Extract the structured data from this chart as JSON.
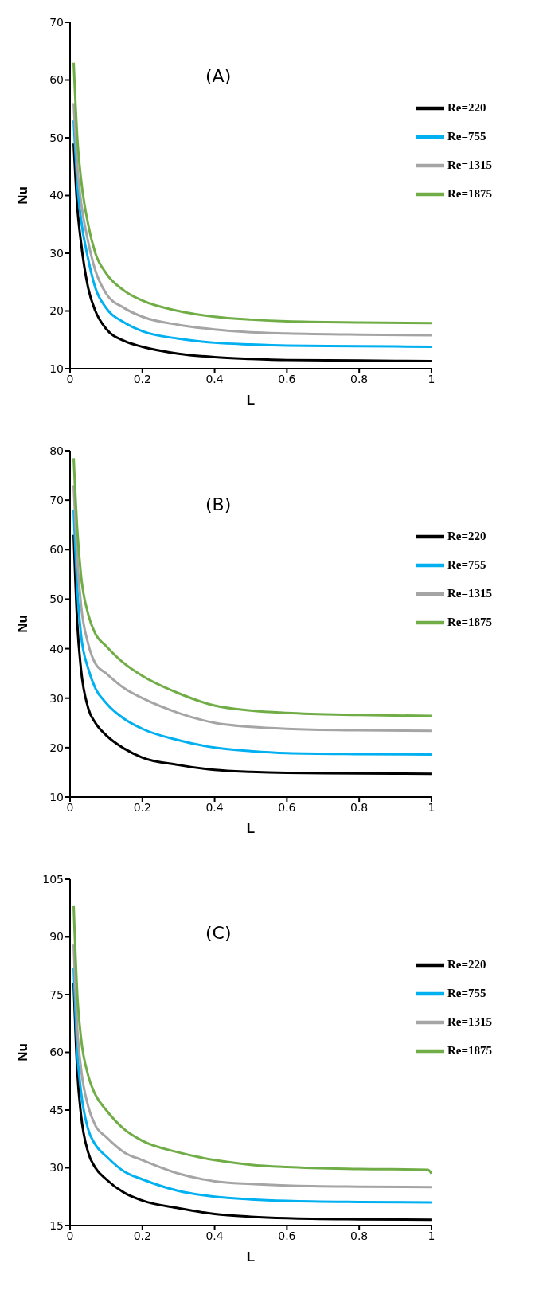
{
  "chart_data": [
    {
      "type": "line",
      "annotations": [
        "(A)"
      ],
      "xlabel": "L",
      "ylabel": "Nu",
      "x": [
        0.01,
        0.02,
        0.03,
        0.05,
        0.07,
        0.1,
        0.15,
        0.2,
        0.3,
        0.4,
        0.5,
        0.6,
        0.8,
        1.0
      ],
      "xlim": [
        0,
        1
      ],
      "xticks": [
        0,
        0.2,
        0.4,
        0.6,
        0.8,
        1
      ],
      "ylim": [
        10,
        70
      ],
      "yticks": [
        10,
        20,
        30,
        40,
        50,
        60,
        70
      ],
      "grid": false,
      "legend": "top right",
      "marker": "none",
      "line_style": "solid",
      "series": [
        {
          "name": "Re=220",
          "color": "#000000",
          "values": [
            49,
            38,
            32,
            24,
            20,
            16.9,
            14.8,
            13.8,
            12.6,
            12.0,
            11.7,
            11.5,
            11.4,
            11.3
          ]
        },
        {
          "name": "Re=755",
          "color": "#00b0f0",
          "values": [
            53,
            42,
            36,
            29,
            24,
            20.5,
            18,
            16.5,
            15.2,
            14.5,
            14.2,
            14.0,
            13.9,
            13.8
          ]
        },
        {
          "name": "Re=1315",
          "color": "#a5a5a5",
          "values": [
            56,
            45,
            39,
            32,
            27,
            23,
            20.5,
            19,
            17.6,
            16.8,
            16.3,
            16.1,
            15.9,
            15.8
          ]
        },
        {
          "name": "Re=1875",
          "color": "#70ad47",
          "values": [
            63,
            50,
            43,
            35,
            30,
            26.5,
            23.5,
            21.8,
            20.0,
            19.0,
            18.5,
            18.2,
            18.0,
            17.9
          ]
        }
      ]
    },
    {
      "type": "line",
      "annotations": [
        "(B)"
      ],
      "xlabel": "L",
      "ylabel": "Nu",
      "x": [
        0.01,
        0.02,
        0.03,
        0.05,
        0.07,
        0.1,
        0.15,
        0.2,
        0.3,
        0.4,
        0.5,
        0.6,
        0.8,
        1.0
      ],
      "xlim": [
        0,
        1
      ],
      "xticks": [
        0,
        0.2,
        0.4,
        0.6,
        0.8,
        1
      ],
      "ylim": [
        10,
        80
      ],
      "yticks": [
        10,
        20,
        30,
        40,
        50,
        60,
        70,
        80
      ],
      "grid": false,
      "legend": "top right",
      "marker": "none",
      "line_style": "solid",
      "series": [
        {
          "name": "Re=220",
          "color": "#000000",
          "values": [
            63,
            45,
            36,
            28,
            25,
            22.5,
            19.8,
            18,
            16.5,
            15.5,
            15.1,
            14.9,
            14.8,
            14.7
          ]
        },
        {
          "name": "Re=755",
          "color": "#00b0f0",
          "values": [
            68,
            52,
            43,
            36,
            32,
            29,
            25.8,
            23.8,
            21.5,
            20,
            19.3,
            18.9,
            18.7,
            18.6
          ]
        },
        {
          "name": "Re=1315",
          "color": "#a5a5a5",
          "values": [
            73,
            58,
            49,
            41,
            37,
            35,
            32,
            30,
            27,
            25,
            24.2,
            23.8,
            23.5,
            23.4
          ]
        },
        {
          "name": "Re=1875",
          "color": "#70ad47",
          "values": [
            78.5,
            64,
            55,
            47,
            43,
            40.5,
            37,
            34.5,
            31,
            28.5,
            27.5,
            27,
            26.6,
            26.4
          ]
        }
      ]
    },
    {
      "type": "line",
      "annotations": [
        "(C)"
      ],
      "xlabel": "L",
      "ylabel": "Nu",
      "x": [
        0.01,
        0.02,
        0.03,
        0.05,
        0.07,
        0.1,
        0.15,
        0.2,
        0.3,
        0.4,
        0.5,
        0.6,
        0.8,
        1.0
      ],
      "xlim": [
        0,
        1
      ],
      "xticks": [
        0,
        0.2,
        0.4,
        0.6,
        0.8,
        1
      ],
      "ylim": [
        15,
        105
      ],
      "yticks": [
        15,
        30,
        45,
        60,
        75,
        90,
        105
      ],
      "grid": false,
      "legend": "top right",
      "marker": "none",
      "line_style": "solid",
      "series": [
        {
          "name": "Re=220",
          "color": "#000000",
          "values": [
            78,
            55,
            44,
            34,
            30,
            27,
            23.5,
            21.5,
            19.5,
            18.0,
            17.3,
            16.9,
            16.6,
            16.5
          ]
        },
        {
          "name": "Re=755",
          "color": "#00b0f0",
          "values": [
            82,
            60,
            50,
            40,
            36,
            33,
            29,
            27,
            24,
            22.5,
            21.8,
            21.4,
            21.1,
            21
          ]
        },
        {
          "name": "Re=1315",
          "color": "#a5a5a5",
          "values": [
            88,
            66,
            56,
            46,
            41,
            38,
            34,
            32,
            28.5,
            26.5,
            25.8,
            25.4,
            25.1,
            25
          ]
        },
        {
          "name": "Re=1875",
          "color": "#70ad47",
          "x": [
            0.01,
            0.02,
            0.03,
            0.05,
            0.07,
            0.1,
            0.15,
            0.2,
            0.3,
            0.4,
            0.5,
            0.6,
            0.8,
            0.99,
            1.0
          ],
          "values": [
            98,
            75,
            64,
            54,
            49,
            45,
            40,
            37,
            34,
            32,
            30.8,
            30.2,
            29.7,
            29.5,
            28.5
          ]
        }
      ]
    }
  ]
}
